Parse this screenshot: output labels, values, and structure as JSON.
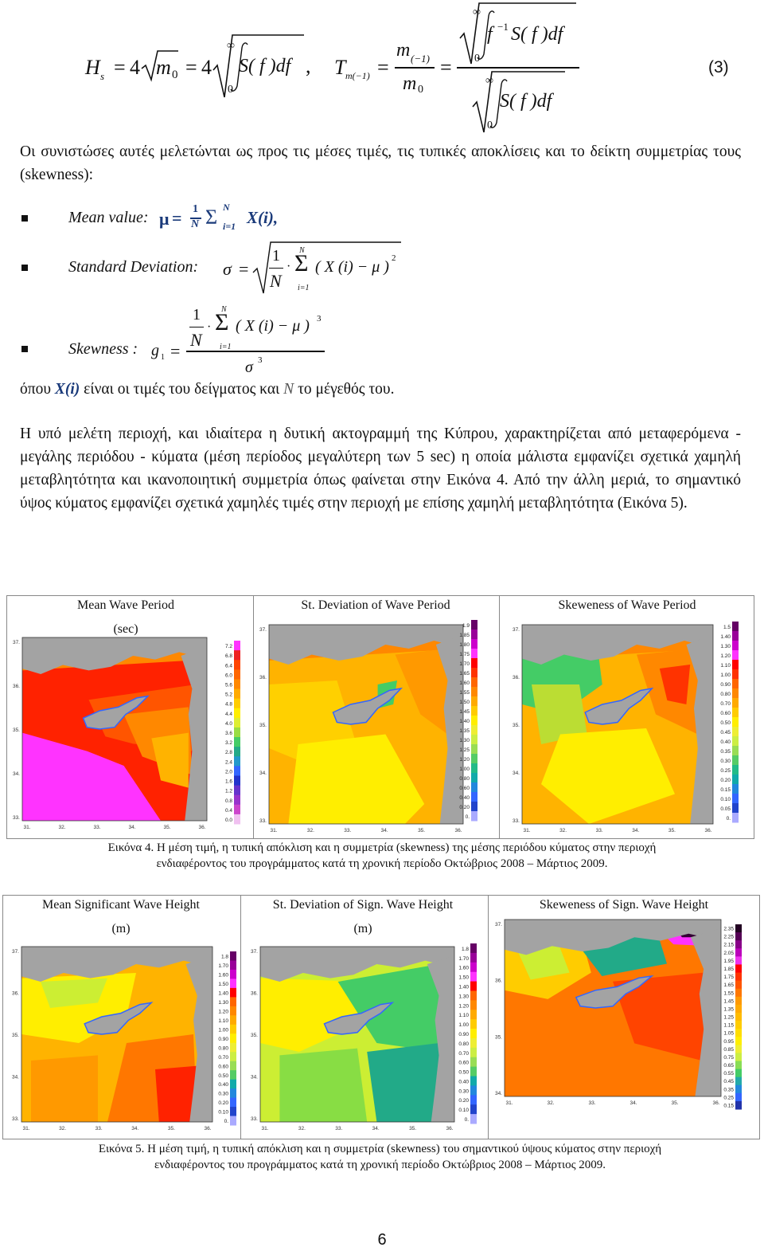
{
  "equation3": {
    "lhs1": "H",
    "lhs1_sub": "s",
    "eq": "=",
    "four1": "4",
    "m0": "m",
    "m0_sub": "0",
    "four2": "4",
    "integrand": "S( f )df",
    "lower": "0",
    "upper": "∞",
    "comma": ",",
    "lhs2": "T",
    "lhs2_sub": "m(−1)",
    "num_m": "m",
    "num_sub": "(−1)",
    "den_m": "m",
    "den_sub": "0",
    "rnum": "f",
    "rnum_sup": "−1",
    "rnum_rest": "S( f )df",
    "rden": "S( f )df",
    "number": "(3)"
  },
  "intro_text": "Οι συνιστώσες αυτές μελετώνται ως προς τις μέσες τιμές, τις τυπικές αποκλίσεις και το δείκτη συμμετρίας τους (skewness):",
  "bullets": {
    "mean_label": "Mean value:",
    "mean_mu": "μ",
    "mean_eq": "=",
    "mean_one": "1",
    "mean_N": "N",
    "mean_sum": "Σ",
    "mean_sup": "N",
    "mean_sub": "i=1",
    "mean_X": "X(i),",
    "std_label": "Standard Deviation:",
    "std_sigma": "σ",
    "std_eq": "=",
    "std_one": "1",
    "std_N": "N",
    "std_dot": "·",
    "std_sum": "Σ",
    "std_sup": "N",
    "std_sub": "i=1",
    "std_term": "( X (i) − μ )",
    "std_pow": "2",
    "skew_label": "Skewness :",
    "skew_g": "g",
    "skew_g_sub": "1",
    "skew_eq": "=",
    "skew_one": "1",
    "skew_N": "N",
    "skew_dot": "·",
    "skew_sum": "Σ",
    "skew_sup": "N",
    "skew_sub": "i=1",
    "skew_term": "( X (i) − μ )",
    "skew_pow": "3",
    "skew_den": "σ",
    "skew_den_pow": "3"
  },
  "where_line": {
    "pre": "όπου",
    "sym": "X(i)",
    "mid": "είναι οι τιμές του δείγματος και",
    "N": "N",
    "post": "το μέγεθός του."
  },
  "paragraph": "Η υπό μελέτη περιοχή, και ιδιαίτερα η δυτική ακτογραμμή της Κύπρου, χαρακτηρίζεται από μεταφερόμενα - μεγάλης περιόδου - κύματα (μέση περίοδος μεγαλύτερη των 5 sec) η οποία μάλιστα εμφανίζει σχετικά χαμηλή μεταβλητότητα και ικανοποιητική συμμετρία όπως φαίνεται στην Εικόνα 4. Από την άλλη μεριά, το σημαντικό ύψος κύματος εμφανίζει σχετικά χαμηλές τιμές στην περιοχή με επίσης χαμηλή μεταβλητότητα (Εικόνα 5).",
  "figure4": {
    "panels": [
      {
        "title": "Mean Wave Period",
        "unit": "(sec)",
        "colorbar": [
          "7.2",
          "6.8",
          "6.4",
          "6.0",
          "5.6",
          "5.2",
          "4.8",
          "4.4",
          "4.0",
          "3.6",
          "3.2",
          "2.8",
          "2.4",
          "2.0",
          "1.6",
          "1.2",
          "0.8",
          "0.4",
          "0.0"
        ],
        "lat": [
          "37.",
          "36.",
          "35.",
          "34.",
          "33."
        ],
        "lon": [
          "31.",
          "32.",
          "33.",
          "34.",
          "35.",
          "36."
        ]
      },
      {
        "title": "St. Deviation of Wave Period",
        "unit": "",
        "colorbar": [
          "1.9",
          "1.85",
          "1.80",
          "1.75",
          "1.70",
          "1.65",
          "1.60",
          "1.55",
          "1.50",
          "1.45",
          "1.40",
          "1.35",
          "1.30",
          "1.25",
          "1.20",
          "1.00",
          "0.80",
          "0.60",
          "0.40",
          "0.20",
          "0."
        ],
        "lat": [
          "37.",
          "36.",
          "35.",
          "34.",
          "33."
        ],
        "lon": [
          "31.",
          "32.",
          "33.",
          "34.",
          "35.",
          "36."
        ]
      },
      {
        "title": "Skeweness of Wave Period",
        "unit": "",
        "colorbar": [
          "1.5",
          "1.40",
          "1.30",
          "1.20",
          "1.10",
          "1.00",
          "0.90",
          "0.80",
          "0.70",
          "0.60",
          "0.50",
          "0.45",
          "0.40",
          "0.35",
          "0.30",
          "0.25",
          "0.20",
          "0.15",
          "0.10",
          "0.05",
          "0."
        ],
        "lat": [
          "37.",
          "36.",
          "35.",
          "34.",
          "33."
        ],
        "lon": [
          "31.",
          "32.",
          "33.",
          "34.",
          "35.",
          "36."
        ]
      }
    ],
    "caption_line1": "Εικόνα 4. Η μέση τιμή, η τυπική απόκλιση και η συμμετρία (skewness) της μέσης περιόδου κύματος στην περιοχή",
    "caption_line2": "ενδιαφέροντος του προγράμματος κατά τη χρονική περίοδο Οκτώβριος 2008 – Μάρτιος 2009."
  },
  "figure5": {
    "panels": [
      {
        "title": "Mean Significant Wave Height",
        "unit": "(m)",
        "colorbar": [
          "1.8",
          "1.70",
          "1.60",
          "1.50",
          "1.40",
          "1.30",
          "1.20",
          "1.10",
          "1.00",
          "0.90",
          "0.80",
          "0.70",
          "0.60",
          "0.50",
          "0.40",
          "0.30",
          "0.20",
          "0.10",
          "0."
        ],
        "lat": [
          "37.",
          "36.",
          "35.",
          "34.",
          "33."
        ],
        "lon": [
          "31.",
          "32.",
          "33.",
          "34.",
          "35.",
          "36."
        ]
      },
      {
        "title": "St. Deviation of Sign. Wave Height",
        "unit": "(m)",
        "colorbar": [
          "1.8",
          "1.70",
          "1.60",
          "1.50",
          "1.40",
          "1.30",
          "1.20",
          "1.10",
          "1.00",
          "0.90",
          "0.80",
          "0.70",
          "0.60",
          "0.50",
          "0.40",
          "0.30",
          "0.20",
          "0.10",
          "0."
        ],
        "lat": [
          "37.",
          "36.",
          "35.",
          "34.",
          "33."
        ],
        "lon": [
          "31.",
          "32.",
          "33.",
          "34.",
          "35.",
          "36."
        ]
      },
      {
        "title": "Skeweness of Sign. Wave Height",
        "unit": "",
        "colorbar": [
          "2.35",
          "2.25",
          "2.15",
          "2.05",
          "1.95",
          "1.85",
          "1.75",
          "1.65",
          "1.55",
          "1.45",
          "1.35",
          "1.25",
          "1.15",
          "1.05",
          "0.95",
          "0.85",
          "0.75",
          "0.65",
          "0.55",
          "0.45",
          "0.35",
          "0.25",
          "0.15"
        ],
        "lat": [
          "37.",
          "36.",
          "35.",
          "34."
        ],
        "lon": [
          "31.",
          "32.",
          "33.",
          "34.",
          "35.",
          "36."
        ]
      }
    ],
    "caption_line1": "Εικόνα 5. Η μέση τιμή, η τυπική απόκλιση και η συμμετρία (skewness) του σημαντικού ύψους κύματος στην περιοχή",
    "caption_line2": "ενδιαφέροντος του προγράμματος κατά τη χρονική περίοδο Οκτώβριος 2008 – Μάρτιος 2009."
  },
  "page_number": "6",
  "colors": {
    "land": "#a3a3a3",
    "magenta": "#ff33ff",
    "red": "#ff2200",
    "orange": "#ff8800",
    "amber": "#ffb300",
    "yellow": "#ffee00",
    "yellowgreen": "#ccee33",
    "green": "#44cc66",
    "teal": "#22aa88",
    "blue": "#3366ff",
    "darkpurple": "#330033"
  }
}
